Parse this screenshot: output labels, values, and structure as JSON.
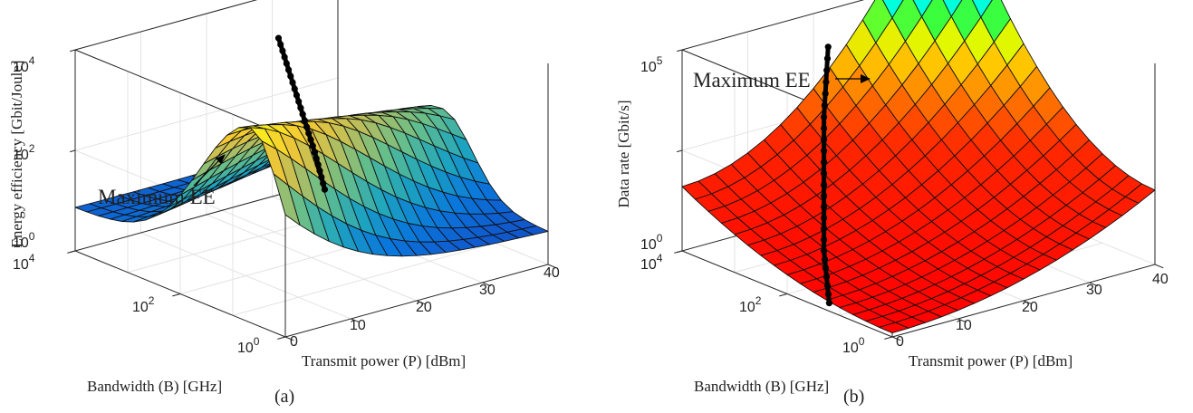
{
  "chart_data": [
    {
      "id": "a",
      "type": "surface",
      "caption": "(a)",
      "xlabel": "Transmit power (P) [dBm]",
      "ylabel": "Bandwidth (B) [GHz]",
      "zlabel": "Energy efficiency [Gbit/Joule]",
      "x_ticks": [
        "0",
        "10",
        "20",
        "30",
        "40"
      ],
      "y_ticks": [
        "10^0",
        "10^2",
        "10^4"
      ],
      "z_ticks": [
        "10^0",
        "10^2",
        "10^4"
      ],
      "x_range": [
        0,
        40
      ],
      "y_range_log10": [
        0,
        4
      ],
      "z_range_log10": [
        0,
        4.5
      ],
      "zscale": "log",
      "colormap": "parula",
      "grid": true,
      "annotation": "Maximum EE",
      "max_ee_curve": [
        {
          "P_dBm": 0,
          "B_log10": 1.3,
          "EE_log10": 2.3
        },
        {
          "P_dBm": 10,
          "B_log10": 1.9,
          "EE_log10": 2.95
        },
        {
          "P_dBm": 20,
          "B_log10": 2.5,
          "EE_log10": 3.55
        },
        {
          "P_dBm": 30,
          "B_log10": 3.0,
          "EE_log10": 4.05
        },
        {
          "P_dBm": 40,
          "B_log10": 3.5,
          "EE_log10": 4.45
        }
      ]
    },
    {
      "id": "b",
      "type": "surface",
      "caption": "(b)",
      "xlabel": "Transmit power (P) [dBm]",
      "ylabel": "Bandwidth (B) [GHz]",
      "zlabel": "Data rate [Gbit/s]",
      "x_ticks": [
        "0",
        "10",
        "20",
        "30",
        "40"
      ],
      "y_ticks": [
        "10^0",
        "10^2",
        "10^4"
      ],
      "z_ticks": [
        "10^0",
        "10^5"
      ],
      "x_range": [
        0,
        40
      ],
      "y_range_log10": [
        0,
        4
      ],
      "z_range_log10": [
        0,
        5.5
      ],
      "zscale": "log",
      "colormap": "jet",
      "grid": true,
      "annotation": "Maximum EE",
      "max_ee_curve": [
        {
          "P_dBm": 0,
          "B_log10": 1.3,
          "R_log10": 0.6
        },
        {
          "P_dBm": 10,
          "B_log10": 1.9,
          "R_log10": 1.7
        },
        {
          "P_dBm": 20,
          "B_log10": 2.5,
          "R_log10": 2.9
        },
        {
          "P_dBm": 30,
          "B_log10": 3.0,
          "R_log10": 3.9
        },
        {
          "P_dBm": 40,
          "B_log10": 3.5,
          "R_log10": 4.9
        }
      ]
    }
  ]
}
